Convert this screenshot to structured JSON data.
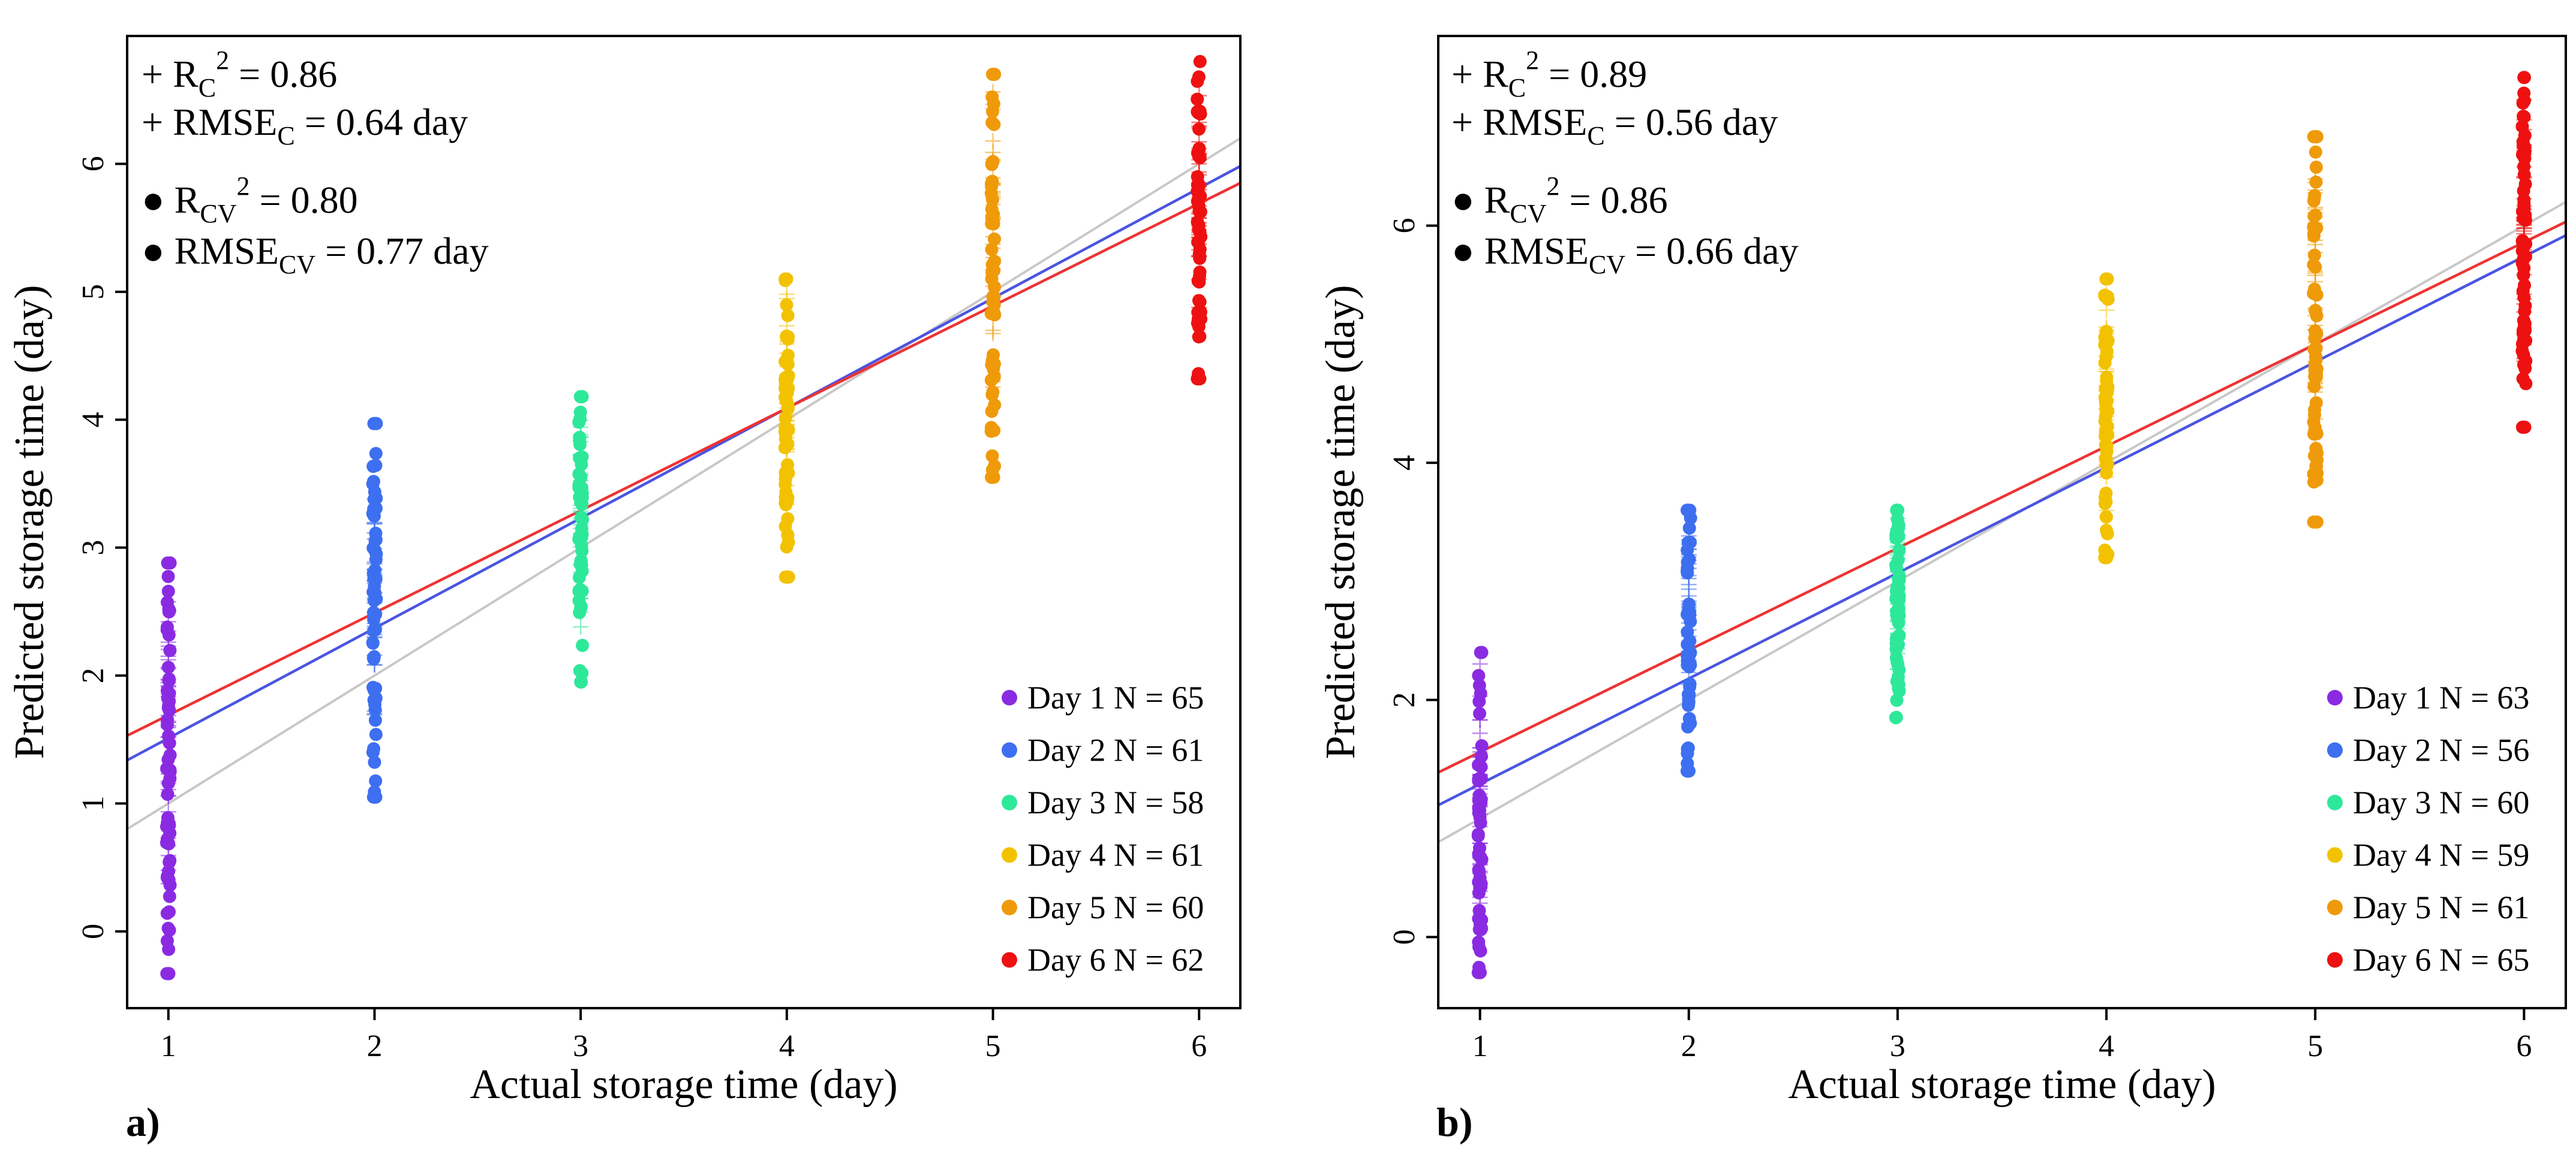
{
  "chart_data": [
    {
      "type": "scatter",
      "panel_label": "a)",
      "xlabel": "Actual storage time (day)",
      "ylabel": "Predicted storage time (day)",
      "xlim": [
        0.8,
        6.2
      ],
      "ylim": [
        -0.6,
        7.0
      ],
      "xticks": [
        "1",
        "2",
        "3",
        "4",
        "5",
        "6"
      ],
      "yticks": [
        "0",
        "1",
        "2",
        "3",
        "4",
        "5",
        "6"
      ],
      "stats": {
        "rc2": "+ R C² = 0.86",
        "rc2_parts": {
          "marker": "+",
          "main": "R",
          "sub": "C",
          "sup": "2",
          "value": " = 0.86"
        },
        "rmsec_parts": {
          "marker": "+",
          "main": "RMSE",
          "sub": "C",
          "value": " = 0.64 day"
        },
        "rcv2_parts": {
          "marker": "●",
          "main": "R",
          "sub": "CV",
          "sup": "2",
          "value": " = 0.80"
        },
        "rmsecv_parts": {
          "marker": "●",
          "main": "RMSE",
          "sub": "CV",
          "value": " = 0.77 day"
        }
      },
      "series": [
        {
          "name": "Day 1",
          "label": "Day 1 N = 65",
          "x": 1,
          "color": "#8a2be2",
          "min": -0.33,
          "max": 2.88,
          "n": 65
        },
        {
          "name": "Day 2",
          "label": "Day 2 N = 61",
          "x": 2,
          "color": "#3d6ff0",
          "min": 1.05,
          "max": 3.97,
          "n": 61
        },
        {
          "name": "Day 3",
          "label": "Day 3 N = 58",
          "x": 3,
          "color": "#2ee89a",
          "min": 1.95,
          "max": 4.18,
          "n": 58
        },
        {
          "name": "Day 4",
          "label": "Day 4 N = 61",
          "x": 4,
          "color": "#f2c200",
          "min": 2.77,
          "max": 5.1,
          "n": 61
        },
        {
          "name": "Day 5",
          "label": "Day 5 N = 60",
          "x": 5,
          "color": "#ef9a0a",
          "min": 3.55,
          "max": 6.7,
          "n": 60
        },
        {
          "name": "Day 6",
          "label": "Day 6 N = 62",
          "x": 6,
          "color": "#ee1111",
          "min": 4.32,
          "max": 6.8,
          "n": 62
        }
      ],
      "lines": [
        {
          "name": "1:1 line",
          "color": "#c8c8c8",
          "slope": 1.0,
          "intercept": 0.0
        },
        {
          "name": "calibration fit",
          "color": "#4a55e0",
          "slope": 0.86,
          "intercept": 0.65
        },
        {
          "name": "cross-validation fit",
          "color": "#ee3333",
          "slope": 0.8,
          "intercept": 0.89
        }
      ]
    },
    {
      "type": "scatter",
      "panel_label": "b)",
      "xlabel": "Actual storage time (day)",
      "ylabel": "Predicted storage time (day)",
      "xlim": [
        0.8,
        6.2
      ],
      "ylim": [
        -0.6,
        7.6
      ],
      "xticks": [
        "1",
        "2",
        "3",
        "4",
        "5",
        "6"
      ],
      "yticks": [
        "0",
        "2",
        "4",
        "6"
      ],
      "stats": {
        "rc2_parts": {
          "marker": "+",
          "main": "R",
          "sub": "C",
          "sup": "2",
          "value": " = 0.89"
        },
        "rmsec_parts": {
          "marker": "+",
          "main": "RMSE",
          "sub": "C",
          "value": " = 0.56 day"
        },
        "rcv2_parts": {
          "marker": "●",
          "main": "R",
          "sub": "CV",
          "sup": "2",
          "value": " = 0.86"
        },
        "rmsecv_parts": {
          "marker": "●",
          "main": "RMSE",
          "sub": "CV",
          "value": " = 0.66 day"
        }
      },
      "series": [
        {
          "name": "Day 1",
          "label": "Day 1 N = 63",
          "x": 1,
          "color": "#8a2be2",
          "min": -0.3,
          "max": 2.4,
          "n": 63
        },
        {
          "name": "Day 2",
          "label": "Day 2 N = 56",
          "x": 2,
          "color": "#3d6ff0",
          "min": 1.4,
          "max": 3.6,
          "n": 56
        },
        {
          "name": "Day 3",
          "label": "Day 3 N = 60",
          "x": 3,
          "color": "#2ee89a",
          "min": 1.85,
          "max": 3.6,
          "n": 60
        },
        {
          "name": "Day 4",
          "label": "Day 4 N = 59",
          "x": 4,
          "color": "#f2c200",
          "min": 3.2,
          "max": 5.55,
          "n": 59
        },
        {
          "name": "Day 5",
          "label": "Day 5 N = 61",
          "x": 5,
          "color": "#ef9a0a",
          "min": 3.5,
          "max": 6.75,
          "n": 61
        },
        {
          "name": "Day 6",
          "label": "Day 6 N = 65",
          "x": 6,
          "color": "#ee1111",
          "min": 4.3,
          "max": 7.25,
          "n": 65
        }
      ],
      "lines": [
        {
          "name": "1:1 line",
          "color": "#c8c8c8",
          "slope": 1.0,
          "intercept": 0.0
        },
        {
          "name": "calibration fit",
          "color": "#4a55e0",
          "slope": 0.89,
          "intercept": 0.4
        },
        {
          "name": "cross-validation fit",
          "color": "#ee3333",
          "slope": 0.86,
          "intercept": 0.7
        }
      ]
    }
  ]
}
